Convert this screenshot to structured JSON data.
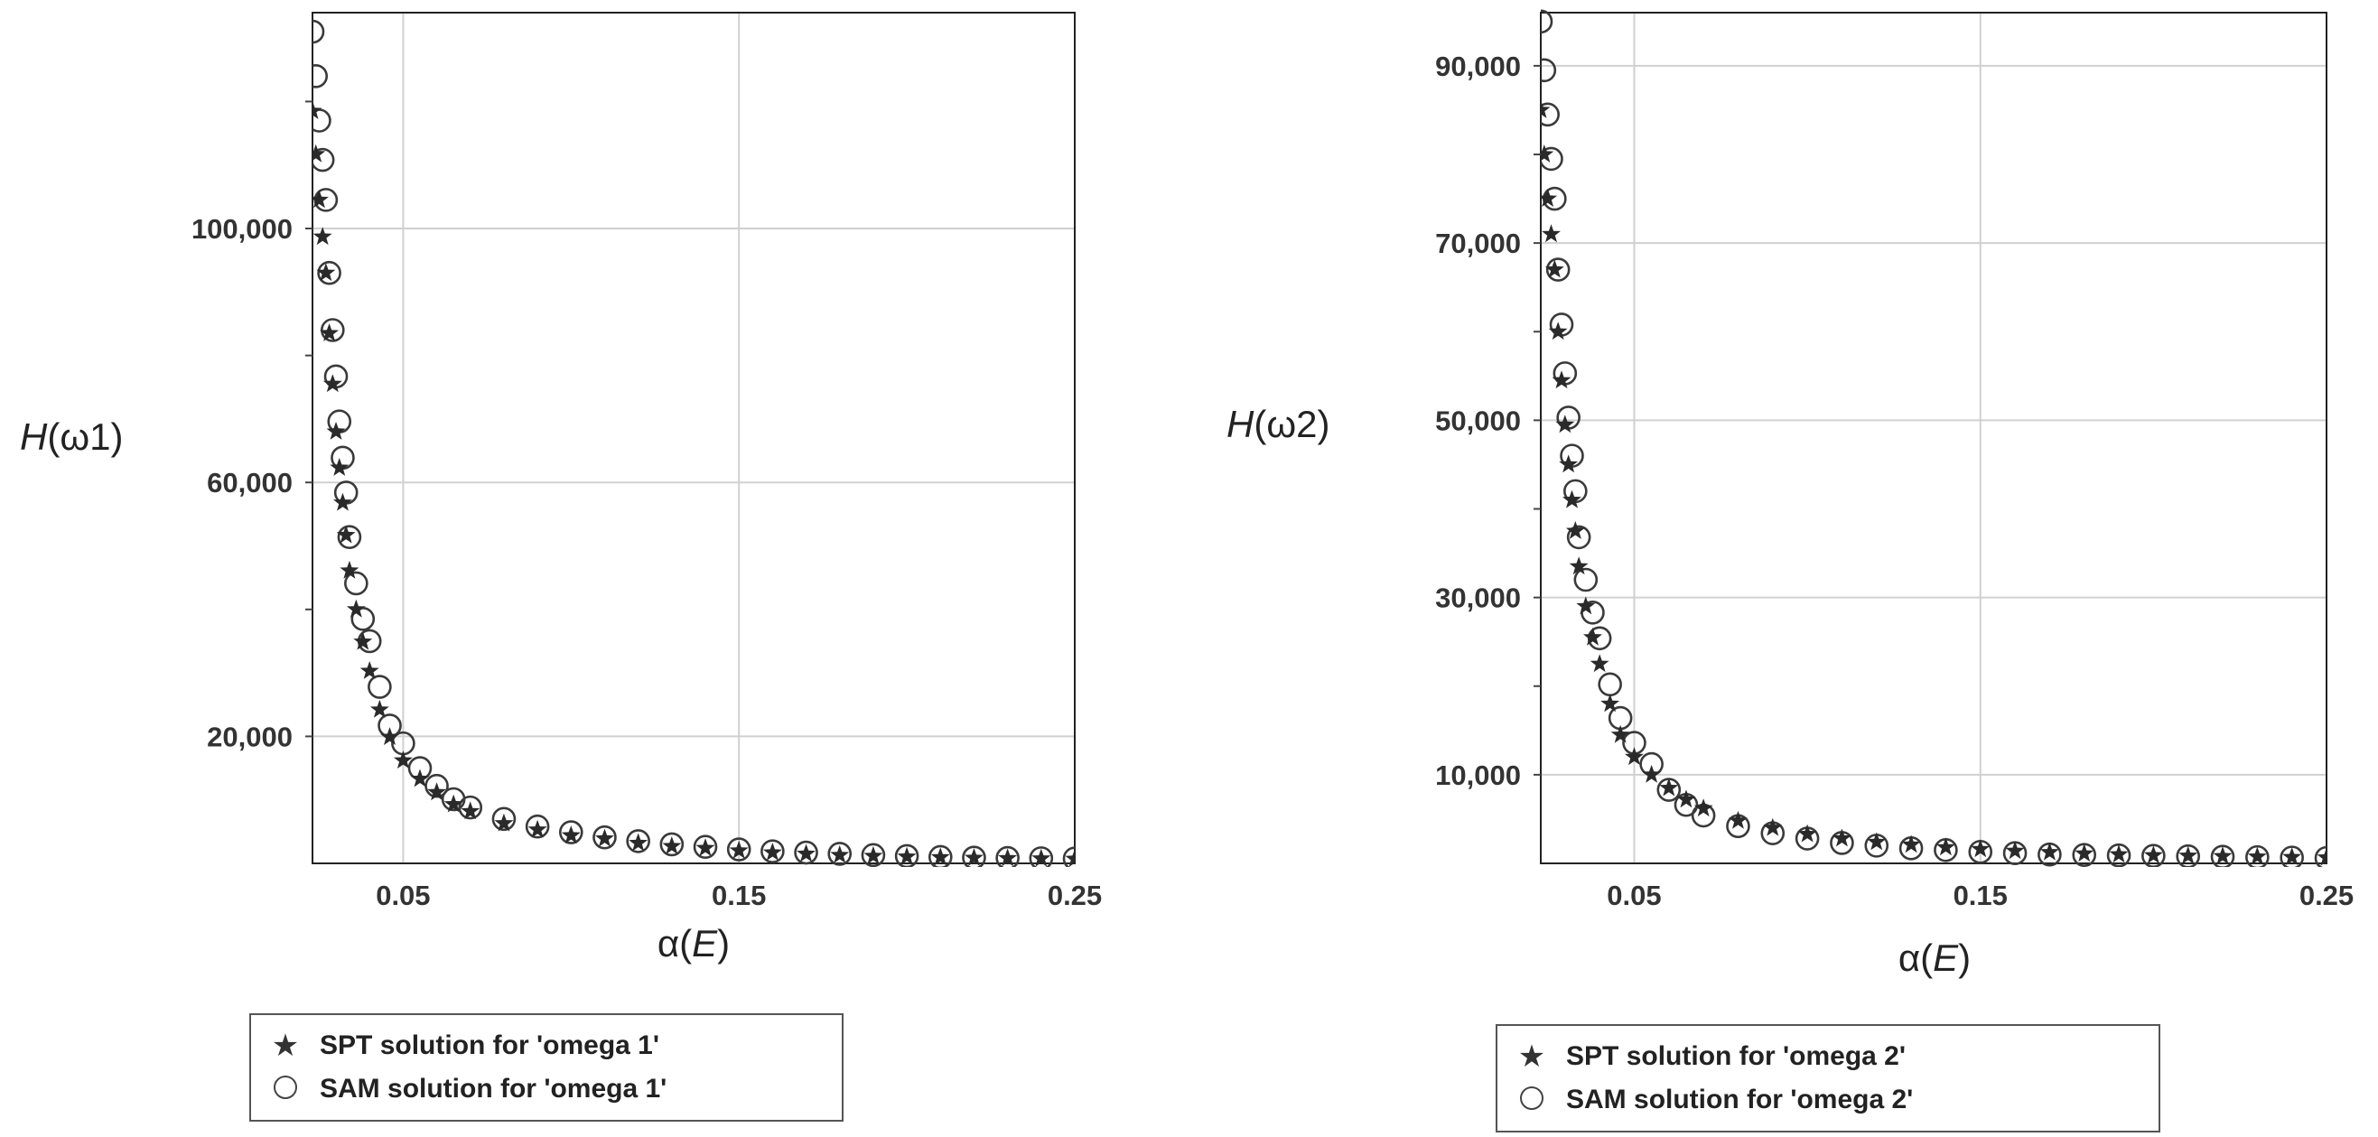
{
  "chart_data": [
    {
      "type": "scatter",
      "title": "",
      "xlabel": "α(E)",
      "xlabel_parts": {
        "prefix": "α(",
        "var": "E",
        "suffix": ")"
      },
      "ylabel": "H(ω1)",
      "ylabel_parts": {
        "var": "H",
        "rest": "(ω1)"
      },
      "xlim": [
        0.023,
        0.25
      ],
      "ylim": [
        0,
        134000
      ],
      "xticks": [
        0.05,
        0.15,
        0.25
      ],
      "xtick_labels": [
        "0.05",
        "0.15",
        "0.25"
      ],
      "yticks": [
        20000,
        60000,
        100000
      ],
      "ytick_labels": [
        "20,000",
        "60,000",
        "100,000"
      ],
      "grid": true,
      "legend_position": "bottom-center",
      "series": [
        {
          "name": "SPT solution for 'omega 1'",
          "legend_prefix": "SPT",
          "legend_rest": " solution for 'omega 1'",
          "marker": "star",
          "x": [
            0.023,
            0.024,
            0.025,
            0.026,
            0.027,
            0.028,
            0.029,
            0.03,
            0.031,
            0.032,
            0.033,
            0.034,
            0.036,
            0.038,
            0.04,
            0.043,
            0.046,
            0.05,
            0.055,
            0.06,
            0.065,
            0.07,
            0.08,
            0.09,
            0.1,
            0.11,
            0.12,
            0.13,
            0.14,
            0.15,
            0.16,
            0.17,
            0.18,
            0.19,
            0.2,
            0.21,
            0.22,
            0.23,
            0.24,
            0.25
          ],
          "y": [
            118500,
            111700,
            104500,
            98700,
            93000,
            83500,
            75500,
            68000,
            62300,
            56800,
            51700,
            46100,
            40000,
            34900,
            30300,
            24200,
            19900,
            16200,
            13300,
            11200,
            9300,
            8200,
            6300,
            5300,
            4400,
            3900,
            3200,
            2700,
            2400,
            2000,
            1700,
            1500,
            1300,
            1150,
            1050,
            950,
            850,
            800,
            750,
            700
          ]
        },
        {
          "name": "SAM solution for 'omega 1'",
          "legend_prefix": "SAM",
          "legend_rest": " solution for 'omega 1'",
          "marker": "circle",
          "x": [
            0.023,
            0.024,
            0.025,
            0.026,
            0.027,
            0.028,
            0.029,
            0.03,
            0.031,
            0.032,
            0.033,
            0.034,
            0.036,
            0.038,
            0.04,
            0.043,
            0.046,
            0.05,
            0.055,
            0.06,
            0.065,
            0.07,
            0.08,
            0.09,
            0.1,
            0.11,
            0.12,
            0.13,
            0.14,
            0.15,
            0.16,
            0.17,
            0.18,
            0.19,
            0.2,
            0.21,
            0.22,
            0.23,
            0.24,
            0.25
          ],
          "y": [
            131000,
            124000,
            117000,
            110800,
            104500,
            93000,
            84000,
            76700,
            69600,
            63900,
            58400,
            51400,
            44100,
            38500,
            35000,
            27800,
            21700,
            18900,
            15000,
            12200,
            10100,
            8800,
            7000,
            5800,
            4900,
            4100,
            3500,
            3000,
            2600,
            2200,
            1900,
            1700,
            1500,
            1300,
            1150,
            1000,
            900,
            850,
            800,
            750
          ]
        }
      ]
    },
    {
      "type": "scatter",
      "title": "",
      "xlabel": "α(E)",
      "xlabel_parts": {
        "prefix": "α(",
        "var": "E",
        "suffix": ")"
      },
      "ylabel": "H(ω2)",
      "ylabel_parts": {
        "var": "H",
        "rest": "(ω2)"
      },
      "xlim": [
        0.023,
        0.25
      ],
      "ylim": [
        0,
        96000
      ],
      "xticks": [
        0.05,
        0.15,
        0.25
      ],
      "xtick_labels": [
        "0.05",
        "0.15",
        "0.25"
      ],
      "yticks": [
        10000,
        30000,
        50000,
        70000,
        90000
      ],
      "ytick_labels": [
        "10,000",
        "30,000",
        "50,000",
        "70,000",
        "90,000"
      ],
      "grid": true,
      "legend_position": "bottom-center",
      "series": [
        {
          "name": "SPT solution for 'omega 2'",
          "legend_prefix": "SPT",
          "legend_rest": " solution for 'omega 2'",
          "marker": "star",
          "x": [
            0.023,
            0.024,
            0.025,
            0.026,
            0.027,
            0.028,
            0.029,
            0.03,
            0.031,
            0.032,
            0.033,
            0.034,
            0.036,
            0.038,
            0.04,
            0.043,
            0.046,
            0.05,
            0.055,
            0.06,
            0.065,
            0.07,
            0.08,
            0.09,
            0.1,
            0.11,
            0.12,
            0.13,
            0.14,
            0.15,
            0.16,
            0.17,
            0.18,
            0.19,
            0.2,
            0.21,
            0.22,
            0.23,
            0.24,
            0.25
          ],
          "y": [
            85000,
            80000,
            75000,
            71000,
            67000,
            60000,
            54500,
            49500,
            45000,
            41000,
            37500,
            33500,
            29000,
            25500,
            22500,
            18000,
            14500,
            12000,
            10000,
            8500,
            7200,
            6200,
            4800,
            4000,
            3300,
            2800,
            2400,
            2100,
            1800,
            1600,
            1400,
            1250,
            1100,
            1000,
            900,
            850,
            800,
            750,
            700,
            650
          ]
        },
        {
          "name": "SAM solution for 'omega 2'",
          "legend_prefix": "SAM",
          "legend_rest": " solution for 'omega 2'",
          "marker": "circle",
          "x": [
            0.023,
            0.024,
            0.025,
            0.026,
            0.027,
            0.028,
            0.029,
            0.03,
            0.031,
            0.032,
            0.033,
            0.034,
            0.036,
            0.038,
            0.04,
            0.043,
            0.046,
            0.05,
            0.055,
            0.06,
            0.065,
            0.07,
            0.08,
            0.09,
            0.1,
            0.11,
            0.12,
            0.13,
            0.14,
            0.15,
            0.16,
            0.17,
            0.18,
            0.19,
            0.2,
            0.21,
            0.22,
            0.23,
            0.24,
            0.25
          ],
          "y": [
            95000,
            89500,
            84500,
            79500,
            75000,
            67000,
            60800,
            55300,
            50300,
            46000,
            42000,
            36800,
            32000,
            28300,
            25400,
            20200,
            16400,
            13600,
            11200,
            8300,
            6600,
            5400,
            4200,
            3400,
            2800,
            2300,
            2000,
            1700,
            1500,
            1300,
            1150,
            1000,
            950,
            900,
            850,
            800,
            750,
            700,
            650,
            600
          ]
        }
      ]
    }
  ]
}
